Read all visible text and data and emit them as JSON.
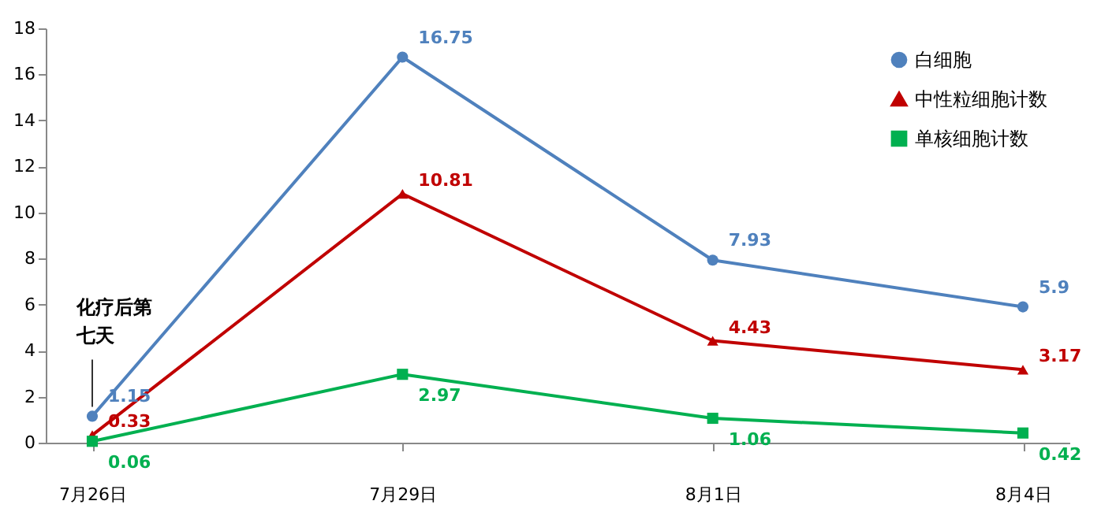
{
  "chart_data": {
    "type": "line",
    "categories": [
      "7月26日",
      "7月29日",
      "8月1日",
      "8月4日"
    ],
    "series": [
      {
        "name": "白细胞",
        "color": "#4f81bd",
        "marker": "circle",
        "values": [
          1.15,
          16.75,
          7.93,
          5.9
        ]
      },
      {
        "name": "中性粒细胞计数",
        "color": "#c00000",
        "marker": "triangle",
        "values": [
          0.33,
          10.81,
          4.43,
          3.17
        ]
      },
      {
        "name": "单核细胞计数",
        "color": "#00b050",
        "marker": "square",
        "values": [
          0.06,
          2.97,
          1.06,
          0.42
        ]
      }
    ],
    "ylim": [
      0,
      18
    ],
    "yticks": [
      0,
      2,
      4,
      6,
      8,
      10,
      12,
      14,
      16,
      18
    ],
    "grid": false,
    "legend": "top right",
    "data_labels": true,
    "line_style": "solid",
    "annotations": [
      {
        "text": "化疗后第七天",
        "x": "7月26日",
        "y": 1.15
      }
    ]
  }
}
